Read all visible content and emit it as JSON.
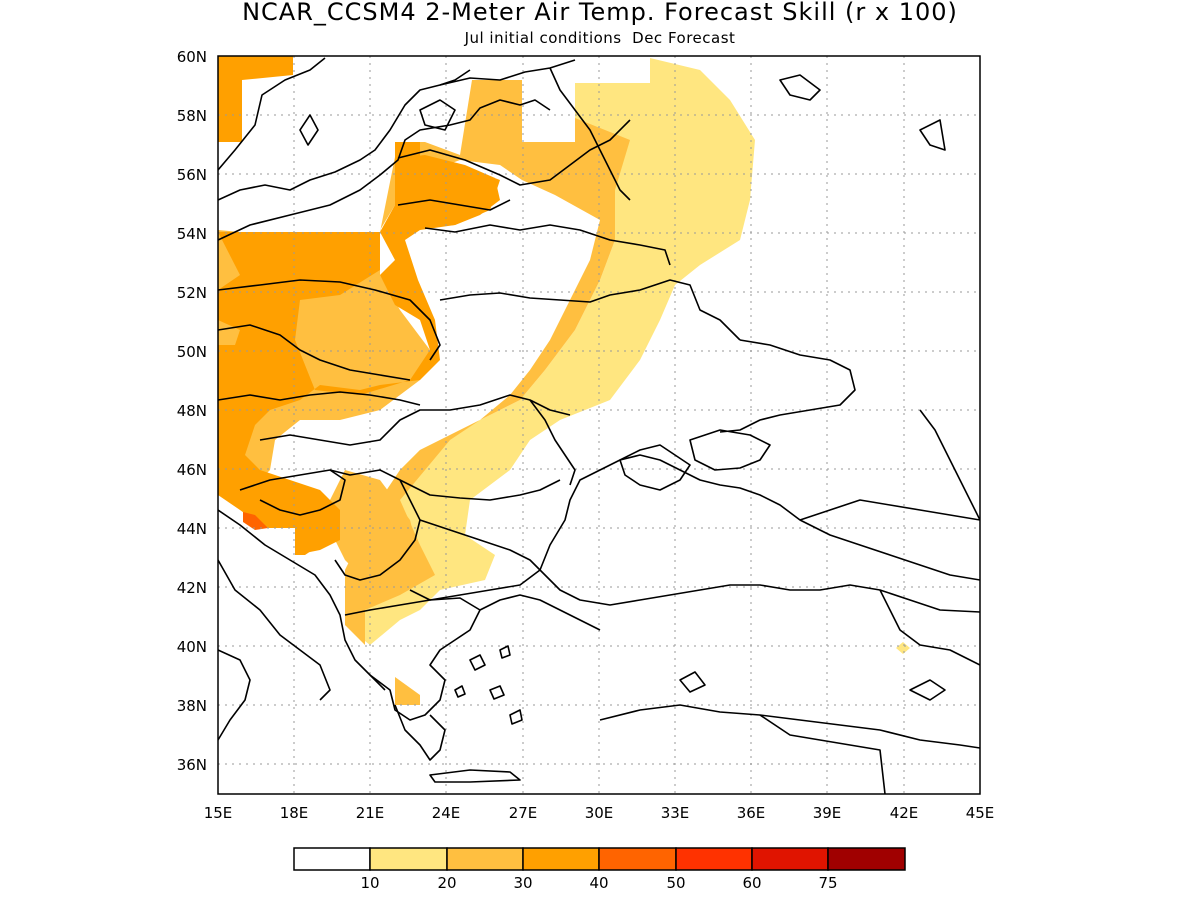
{
  "title": "NCAR_CCSM4 2-Meter Air Temp. Forecast Skill (r x 100)",
  "subtitle": "Jul initial conditions  Dec Forecast",
  "map": {
    "lon_range": [
      15,
      45
    ],
    "lat_range": [
      35,
      60
    ],
    "x_ticks": [
      "15E",
      "18E",
      "21E",
      "24E",
      "27E",
      "30E",
      "33E",
      "36E",
      "39E",
      "42E",
      "45E"
    ],
    "y_ticks": [
      "60N",
      "58N",
      "56N",
      "54N",
      "52N",
      "50N",
      "48N",
      "46N",
      "44N",
      "42N",
      "40N",
      "38N",
      "36N"
    ],
    "grid": "dotted"
  },
  "colorbar": {
    "levels": [
      "10",
      "20",
      "30",
      "40",
      "50",
      "60",
      "75"
    ],
    "colors": [
      "#ffffff",
      "#ffe680",
      "#ffbf40",
      "#ffa000",
      "#ff6400",
      "#ff3200",
      "#e01400",
      "#a00000"
    ]
  }
}
